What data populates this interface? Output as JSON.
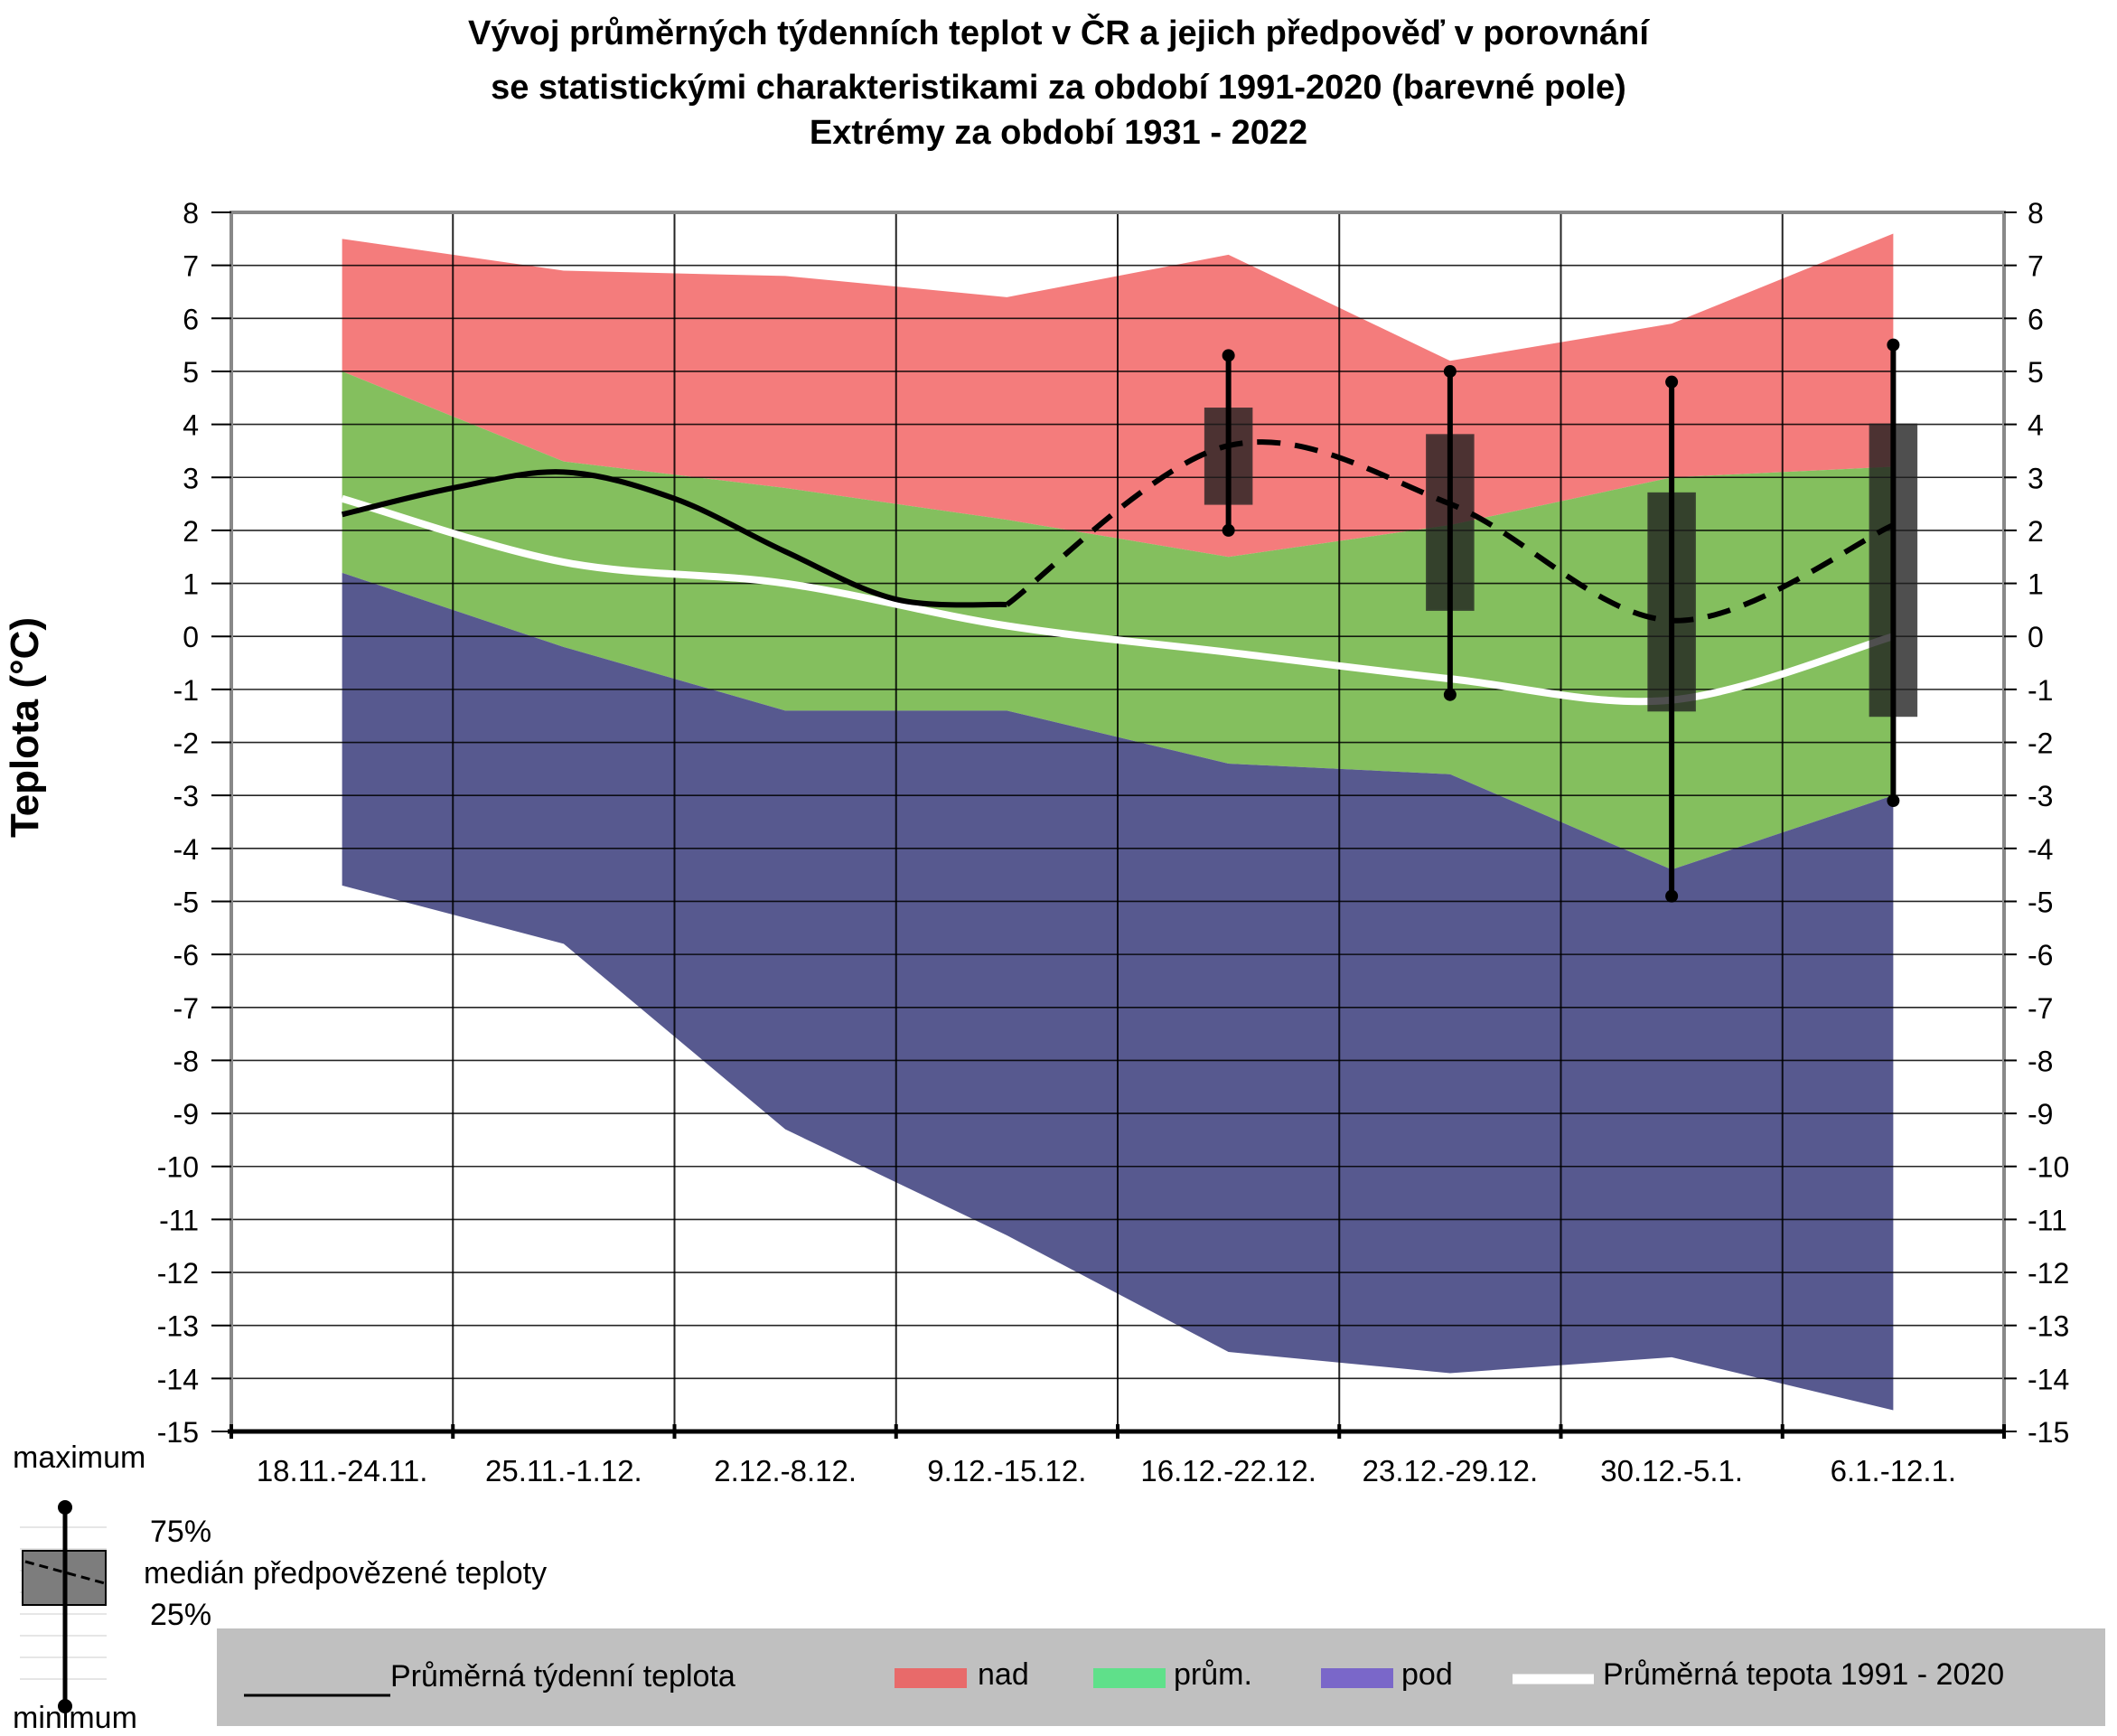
{
  "chart_data": {
    "type": "area",
    "title": [
      "Vývoj průměrných týdenních teplot v ČR a jejich předpověď v porovnání",
      "se statistickými charakteristikami za období 1991-2020 (barevné pole)",
      "Extrémy za období 1931 - 2022"
    ],
    "ylabel": "Teplota (°C)",
    "ylim": [
      -15,
      8
    ],
    "yticks": [
      "8",
      "7",
      "6",
      "5",
      "4",
      "3",
      "2",
      "1",
      "0",
      "-1",
      "-2",
      "-3",
      "-4",
      "-5",
      "-6",
      "-7",
      "-8",
      "-9",
      "-10",
      "-11",
      "-12",
      "-13",
      "-14",
      "-15"
    ],
    "categories": [
      "18.11.-24.11.",
      "25.11.-1.12.",
      "2.12.-8.12.",
      "9.12.-15.12.",
      "16.12.-22.12.",
      "23.12.-29.12.",
      "30.12.-5.1.",
      "6.1.-12.1."
    ],
    "bands": {
      "max": [
        7.5,
        6.9,
        6.8,
        6.4,
        7.2,
        5.2,
        5.9,
        7.6
      ],
      "p_upper": [
        5.0,
        3.3,
        2.8,
        2.2,
        1.5,
        2.1,
        3.0,
        3.2
      ],
      "p_lower": [
        1.2,
        -0.2,
        -1.4,
        -1.4,
        -2.4,
        -2.6,
        -4.4,
        -3.0
      ],
      "min": [
        -4.7,
        -5.8,
        -9.3,
        -11.3,
        -13.5,
        -13.9,
        -13.6,
        -14.6
      ]
    },
    "normal_1991_2020": [
      2.6,
      1.4,
      1.0,
      0.2,
      -0.3,
      -0.8,
      -1.2,
      0.0
    ],
    "observed": {
      "x": [
        0,
        0.5,
        1.0,
        1.5,
        2.0,
        2.5,
        3.0
      ],
      "y": [
        2.3,
        2.8,
        3.1,
        2.6,
        1.6,
        0.7,
        0.6
      ]
    },
    "forecast_median": {
      "x": [
        3.0,
        4.0,
        5.0,
        6.0,
        7.0
      ],
      "y": [
        0.6,
        3.6,
        2.5,
        0.3,
        2.1
      ]
    },
    "forecast_boxes": [
      {
        "category": "16.12.-22.12.",
        "min": 2.0,
        "q25": 2.5,
        "median": 3.6,
        "q75": 4.3,
        "max": 5.3
      },
      {
        "category": "23.12.-29.12.",
        "min": -1.1,
        "q25": 0.5,
        "median": 2.5,
        "q75": 3.8,
        "max": 5.0
      },
      {
        "category": "30.12.-5.1.",
        "min": -4.9,
        "q25": -1.4,
        "median": 0.3,
        "q75": 2.7,
        "max": 4.8
      },
      {
        "category": "6.1.-12.1.",
        "min": -3.1,
        "q25": -1.5,
        "median": 2.1,
        "q75": 4.0,
        "max": 5.5
      }
    ],
    "colors": {
      "above": "#f47c7c",
      "average": "#84bf5e",
      "below": "#57598f",
      "normal": "#ffffff",
      "box": "#1e1e1e",
      "legend_bar": "#c0c0c0"
    },
    "legend": {
      "observed": "Průměrná týdenní teplota",
      "above": "nad",
      "average": "prům.",
      "below": "pod",
      "normal": "Průměrná tepota 1991 - 2020"
    },
    "legend_box": {
      "maximum": "maximum",
      "q75": "75%",
      "median": "medián předpovězené teploty",
      "q25": "25%",
      "minimum": "minimum"
    }
  }
}
